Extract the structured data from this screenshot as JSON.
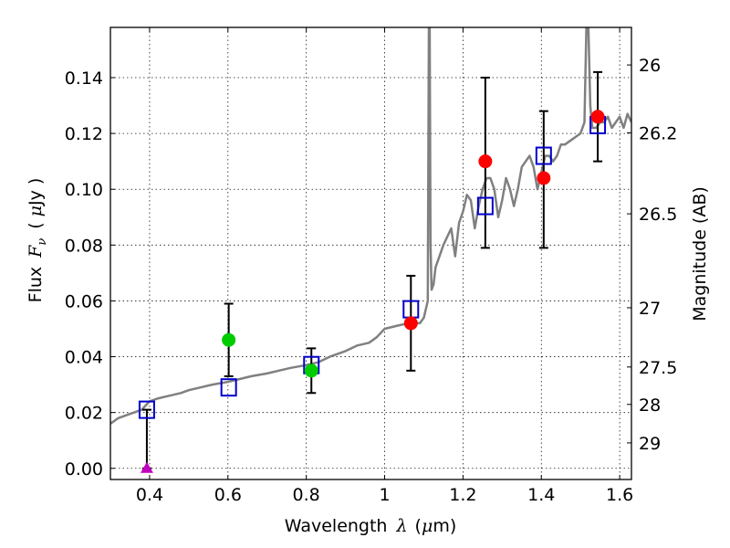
{
  "chart_data": {
    "type": "scatter",
    "xlabel_prefix": "Wavelength",
    "xlabel_symbol": "λ",
    "xlabel_unit_open": "(",
    "xlabel_unit_mu": "μ",
    "xlabel_unit_rest": "m)",
    "ylabel_prefix": "Flux",
    "ylabel_symbol": "F",
    "ylabel_subscript": "ν",
    "ylabel_unit_open": "(",
    "ylabel_unit_mu": "μ",
    "ylabel_unit_rest": "Jy )",
    "y2label": "Magnitude (AB)",
    "xlim": [
      0.3,
      1.63
    ],
    "ylim": [
      -0.004,
      0.158
    ],
    "grid": true,
    "xticks": [
      "0.4",
      "0.6",
      "0.8",
      "1",
      "1.2",
      "1.4",
      "1.6"
    ],
    "xtick_values": [
      0.4,
      0.6,
      0.8,
      1.0,
      1.2,
      1.4,
      1.6
    ],
    "yticks": [
      "0.00",
      "0.02",
      "0.04",
      "0.06",
      "0.08",
      "0.10",
      "0.12",
      "0.14"
    ],
    "ytick_values": [
      0.0,
      0.02,
      0.04,
      0.06,
      0.08,
      0.1,
      0.12,
      0.14
    ],
    "y2ticks": [
      {
        "label": "26",
        "mag": 26.0
      },
      {
        "label": "26.2",
        "mag": 26.2
      },
      {
        "label": "26.5",
        "mag": 26.5
      },
      {
        "label": "27",
        "mag": 27.0
      },
      {
        "label": "27.5",
        "mag": 27.5
      },
      {
        "label": "28",
        "mag": 28.0
      },
      {
        "label": "29",
        "mag": 29.0
      }
    ],
    "colors": {
      "template": "#808080",
      "model": "#0000cc",
      "red_points": "#ff0000",
      "green_points": "#00cc00",
      "upper_limit": "#bf00bf",
      "errorbar": "#000000"
    },
    "template_spectrum": {
      "x": [
        0.3,
        0.32,
        0.34,
        0.36,
        0.38,
        0.4,
        0.42,
        0.45,
        0.48,
        0.5,
        0.53,
        0.56,
        0.6,
        0.63,
        0.66,
        0.7,
        0.73,
        0.76,
        0.8,
        0.83,
        0.86,
        0.9,
        0.93,
        0.96,
        0.98,
        1.0,
        1.03,
        1.06,
        1.09,
        1.1,
        1.11,
        1.113,
        1.115,
        1.117,
        1.12,
        1.125,
        1.13,
        1.15,
        1.17,
        1.18,
        1.19,
        1.2,
        1.21,
        1.22,
        1.23,
        1.24,
        1.25,
        1.26,
        1.27,
        1.28,
        1.29,
        1.3,
        1.31,
        1.32,
        1.33,
        1.34,
        1.35,
        1.36,
        1.37,
        1.38,
        1.39,
        1.4,
        1.41,
        1.42,
        1.43,
        1.44,
        1.45,
        1.46,
        1.48,
        1.5,
        1.51,
        1.515,
        1.52,
        1.525,
        1.53,
        1.54,
        1.55,
        1.56,
        1.57,
        1.58,
        1.59,
        1.6,
        1.61,
        1.62,
        1.63
      ],
      "y": [
        0.016,
        0.018,
        0.019,
        0.02,
        0.021,
        0.024,
        0.025,
        0.026,
        0.027,
        0.028,
        0.029,
        0.03,
        0.031,
        0.032,
        0.033,
        0.034,
        0.035,
        0.036,
        0.037,
        0.038,
        0.04,
        0.042,
        0.044,
        0.045,
        0.047,
        0.05,
        0.051,
        0.052,
        0.052,
        0.054,
        0.06,
        0.158,
        0.158,
        0.08,
        0.064,
        0.066,
        0.072,
        0.08,
        0.086,
        0.076,
        0.088,
        0.092,
        0.098,
        0.096,
        0.086,
        0.094,
        0.1,
        0.104,
        0.104,
        0.1,
        0.09,
        0.096,
        0.104,
        0.1,
        0.094,
        0.1,
        0.108,
        0.11,
        0.112,
        0.108,
        0.1,
        0.106,
        0.112,
        0.112,
        0.11,
        0.112,
        0.116,
        0.116,
        0.118,
        0.12,
        0.124,
        0.158,
        0.158,
        0.13,
        0.122,
        0.122,
        0.124,
        0.124,
        0.126,
        0.122,
        0.124,
        0.126,
        0.122,
        0.127,
        0.124
      ]
    },
    "series": [
      {
        "marker": "square",
        "points": [
          {
            "x": 0.393,
            "y": 0.021
          },
          {
            "x": 0.602,
            "y": 0.029
          },
          {
            "x": 0.813,
            "y": 0.037
          },
          {
            "x": 1.067,
            "y": 0.057
          },
          {
            "x": 1.257,
            "y": 0.094
          },
          {
            "x": 1.406,
            "y": 0.112
          },
          {
            "x": 1.544,
            "y": 0.123
          }
        ]
      },
      {
        "marker": "circle-green",
        "points": [
          {
            "x": 0.602,
            "y": 0.046,
            "yerr": [
              0.033,
              0.059
            ]
          },
          {
            "x": 0.813,
            "y": 0.035,
            "yerr": [
              0.027,
              0.043
            ]
          }
        ]
      },
      {
        "marker": "circle-red",
        "points": [
          {
            "x": 1.067,
            "y": 0.052,
            "yerr": [
              0.035,
              0.069
            ]
          },
          {
            "x": 1.257,
            "y": 0.11,
            "yerr": [
              0.079,
              0.14
            ]
          },
          {
            "x": 1.406,
            "y": 0.104,
            "yerr": [
              0.079,
              0.128
            ]
          },
          {
            "x": 1.544,
            "y": 0.126,
            "yerr": [
              0.11,
              0.142
            ]
          }
        ]
      },
      {
        "marker": "triangle",
        "points": [
          {
            "x": 0.393,
            "y": 0.0,
            "yerr": [
              0.0,
              0.021
            ]
          }
        ]
      }
    ]
  }
}
